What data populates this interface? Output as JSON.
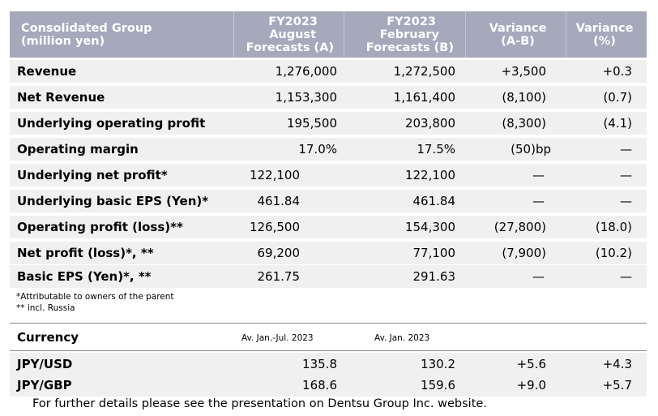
{
  "header": {
    "col0": [
      "Consolidated Group",
      "(million yen)"
    ],
    "col1": [
      "FY2023",
      "August",
      "Forecasts (A)"
    ],
    "col2": [
      "FY2023",
      "February",
      "Forecasts (B)"
    ],
    "col3": [
      "Variance",
      "(A-B)"
    ],
    "col4": [
      "Variance",
      "(%)"
    ]
  },
  "rows": [
    {
      "label": "Revenue",
      "a": "1,276,000",
      "b": "1,272,500",
      "diff": "+3,500",
      "pct": "+0.3"
    },
    {
      "label": "Net Revenue",
      "a": "1,153,300",
      "b": "1,161,400",
      "diff": "(8,100)",
      "pct": "(0.7)"
    },
    {
      "label": "Underlying operating profit",
      "a": "195,500",
      "b": "203,800",
      "diff": "(8,300)",
      "pct": "(4.1)"
    },
    {
      "label": "Operating margin",
      "a": "17.0%",
      "b": "17.5%",
      "diff": "(50)bp",
      "pct": "—"
    },
    {
      "label": "Underlying net profit*",
      "a": "122,100",
      "b": "122,100",
      "diff": "—",
      "pct": "—"
    },
    {
      "label": "Underlying basic EPS (Yen)*",
      "a": "461.84",
      "b": "461.84",
      "diff": "—",
      "pct": "—"
    },
    {
      "label": "Operating profit (loss)**",
      "a": "126,500",
      "b": "154,300",
      "diff": "(27,800)",
      "pct": "(18.0)"
    },
    {
      "label": "Net profit (loss)*, **",
      "a": "69,200",
      "b": "77,100",
      "diff": "(7,900)",
      "pct": "(10.2)"
    },
    {
      "label": "Basic EPS (Yen)*, **",
      "a": "261.75",
      "b": "291.63",
      "diff": "—",
      "pct": "—"
    }
  ],
  "notes": [
    "*Attributable to owners of the parent",
    "** incl. Russia"
  ],
  "currency": {
    "label": "Currency",
    "sub_a": "Av. Jan.-Jul. 2023",
    "sub_b": "Av. Jan. 2023",
    "rows": [
      {
        "label": "JPY/USD",
        "a": "135.8",
        "b": "130.2",
        "diff": "+5.6",
        "pct": "+4.3"
      },
      {
        "label": "JPY/GBP",
        "a": "168.6",
        "b": "159.6",
        "diff": "+9.0",
        "pct": "+5.7"
      }
    ]
  },
  "footer": "For further details please see the presentation on Dentsu Group Inc. website.",
  "colors": {
    "header_bg": "#a6a9bc",
    "row_bg": "#f0f0f0"
  }
}
